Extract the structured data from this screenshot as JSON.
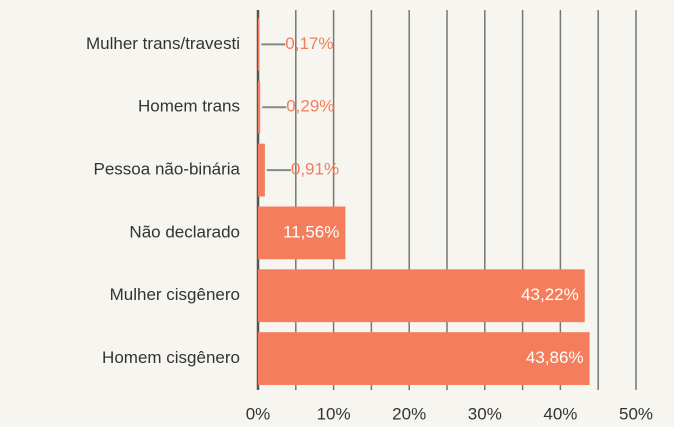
{
  "chart_data": {
    "type": "barh",
    "categories": [
      "Mulher trans/travesti",
      "Homem trans",
      "Pessoa não-binária",
      "Não declarado",
      "Mulher cisgênero",
      "Homem cisgênero"
    ],
    "values": [
      0.17,
      0.29,
      0.91,
      11.56,
      43.22,
      43.86
    ],
    "value_labels": [
      "0,17%",
      "0,29%",
      "0,91%",
      "11,56%",
      "43,22%",
      "43,86%"
    ],
    "color": "#f47d5b",
    "xlim": [
      0,
      50
    ],
    "xticks": [
      {
        "value": 0,
        "label": "0%"
      },
      {
        "value": 10,
        "label": "10%"
      },
      {
        "value": 20,
        "label": "20%"
      },
      {
        "value": 30,
        "label": "30%"
      },
      {
        "value": 40,
        "label": "40%"
      },
      {
        "value": 50,
        "label": "50%"
      }
    ],
    "xminorticks": [
      5,
      15,
      25,
      35,
      45
    ],
    "grid": true
  }
}
